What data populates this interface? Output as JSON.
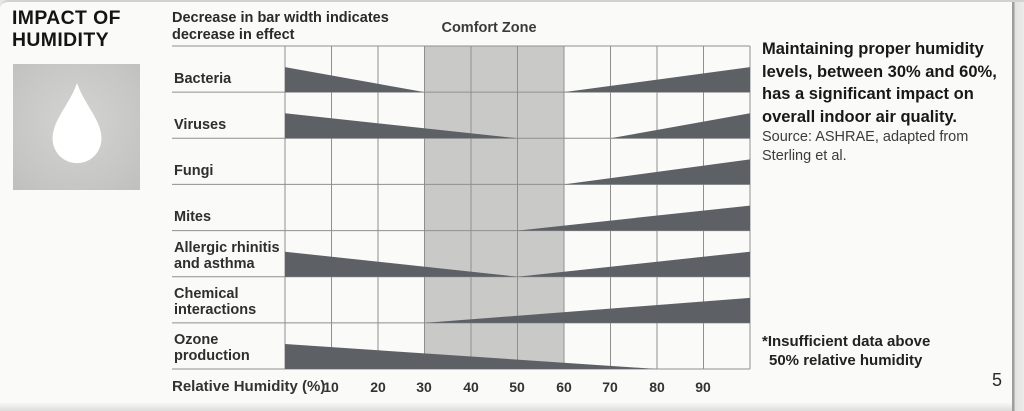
{
  "page": {
    "title": "IMPACT OF\nHUMIDITY",
    "page_number": "5"
  },
  "legend_note": "Decrease in bar width indicates\ndecrease in effect",
  "right_panel": {
    "headline_lines": [
      "Maintaining proper humidity",
      "levels, between 30% and 60%,",
      "has a significant impact on",
      "overall indoor air quality."
    ],
    "source_lines": [
      "Source: ASHRAE, adapted from",
      "Sterling et al."
    ]
  },
  "footnote": {
    "line1": "*Insufficient data above",
    "line2": "50% relative humidity"
  },
  "icons": {
    "droplet": "water-droplet"
  },
  "chart_data": {
    "type": "bar",
    "style": "tapered-wedge-bars, width of bar indicates magnitude of effect",
    "comfort_zone_label": "Comfort Zone",
    "comfort_zone": [
      30,
      60
    ],
    "xlabel": "Relative Humidity (%)",
    "xlim": [
      0,
      100
    ],
    "x_ticks": [
      "10",
      "20",
      "30",
      "40",
      "50",
      "60",
      "70",
      "80",
      "90"
    ],
    "grid": true,
    "rows": [
      {
        "label": "Bacteria",
        "segments": [
          {
            "start": 0,
            "end": 30,
            "wide_end": "start"
          },
          {
            "start": 60,
            "end": 100,
            "wide_end": "end"
          }
        ]
      },
      {
        "label": "Viruses",
        "segments": [
          {
            "start": 0,
            "end": 50,
            "wide_end": "start"
          },
          {
            "start": 70,
            "end": 100,
            "wide_end": "end"
          }
        ]
      },
      {
        "label": "Fungi",
        "segments": [
          {
            "start": 60,
            "end": 100,
            "wide_end": "end"
          }
        ]
      },
      {
        "label": "Mites",
        "segments": [
          {
            "start": 50,
            "end": 100,
            "wide_end": "end"
          }
        ]
      },
      {
        "label": "Allergic rhinitis\nand asthma",
        "segments": [
          {
            "start": 0,
            "end": 50,
            "wide_end": "start"
          },
          {
            "start": 50,
            "end": 100,
            "wide_end": "end"
          }
        ]
      },
      {
        "label": "Chemical\ninteractions",
        "segments": [
          {
            "start": 30,
            "end": 100,
            "wide_end": "end"
          }
        ]
      },
      {
        "label": "Ozone\nproduction",
        "segments": [
          {
            "start": 0,
            "end": 80,
            "wide_end": "start"
          }
        ]
      }
    ],
    "colors": {
      "bar": "#5d6166",
      "comfort_zone": "#c9cac7",
      "grid_line": "#8e9090",
      "background": "#fafaf8"
    }
  }
}
